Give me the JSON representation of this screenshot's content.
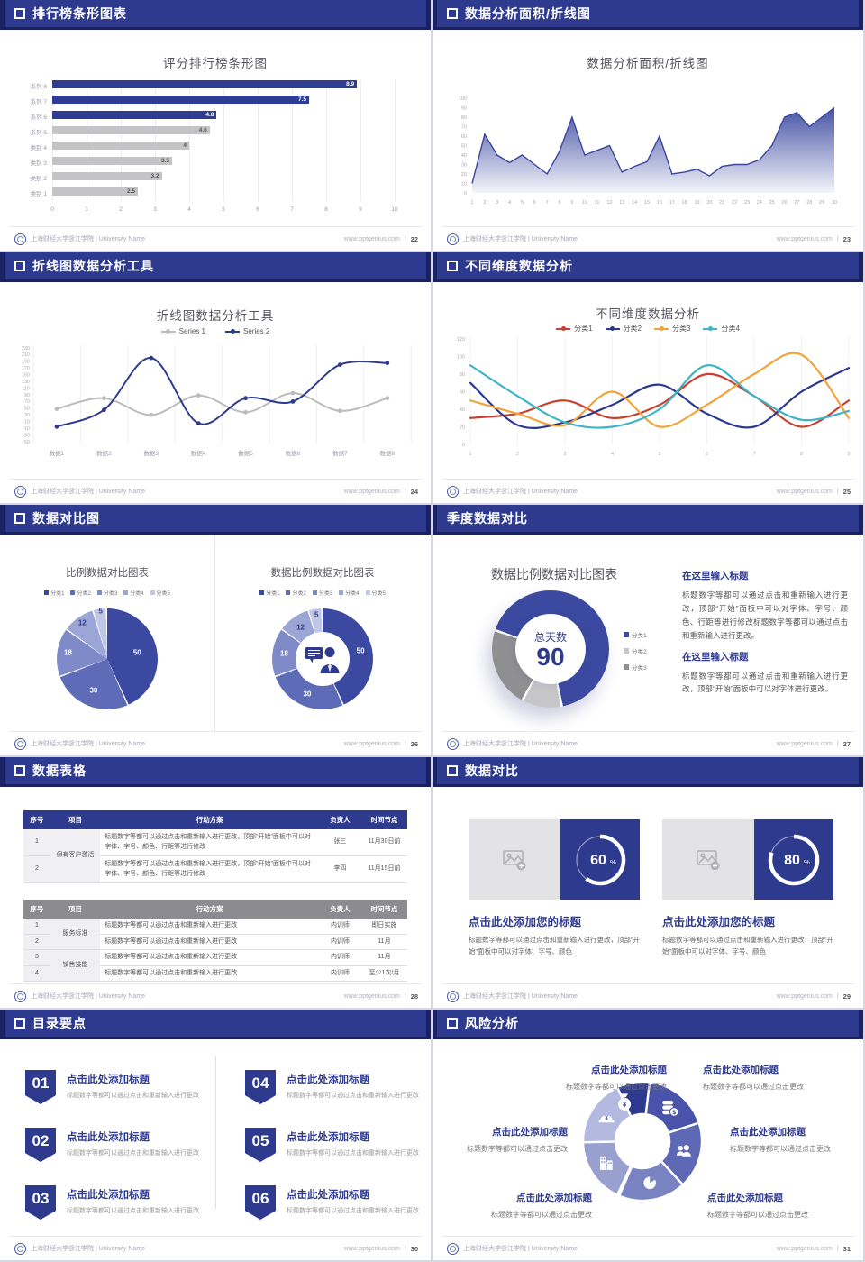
{
  "accent": "#2e3a8e",
  "footer": {
    "org": "上海财经大学浙江学院 | University Name",
    "site": "www.pptgenius.com",
    "sep": "|"
  },
  "slides": {
    "bar": {
      "header": "排行榜条形图表",
      "page": "22"
    },
    "area": {
      "header": "数据分析面积/折线图",
      "page": "23"
    },
    "line2": {
      "header": "折线图数据分析工具",
      "page": "24"
    },
    "line4": {
      "header": "不同维度数据分析",
      "page": "25"
    },
    "pies": {
      "header": "数据对比图",
      "page": "26"
    },
    "donut90": {
      "header": "季度数据对比",
      "page": "27",
      "blocks": [
        {
          "title": "在这里输入标题",
          "body": "标题数字等都可以通过点击和重新输入进行更改，顶部“开始”面板中可以对字体、字号、颜色、行距等进行修改标题数字等都可以通过点击和重新输入进行更改。"
        },
        {
          "title": "在这里输入标题",
          "body": "标题数字等都可以通过点击和重新输入进行更改，顶部“开始”面板中可以对字体进行更改。"
        }
      ]
    },
    "tables": {
      "header": "数据表格",
      "page": "28",
      "table1": {
        "style": "blue",
        "columns": [
          "序号",
          "项目",
          "行动方案",
          "负责人",
          "时间节点"
        ],
        "groups": [
          {
            "project": "保有客户激活",
            "rows": [
              [
                "1",
                "标题数字等都可以通过点击和重新输入进行更改，顶部“开始”面板中可以对字体、字号、颜色、行距等进行修改",
                "张三",
                "11月30日前"
              ],
              [
                "2",
                "标题数字等都可以通过点击和重新输入进行更改，顶部“开始”面板中可以对字体、字号、颜色、行距等进行修改",
                "李四",
                "11月15日前"
              ]
            ]
          }
        ]
      },
      "table2": {
        "style": "gray",
        "columns": [
          "序号",
          "项目",
          "行动方案",
          "负责人",
          "时间节点"
        ],
        "groups": [
          {
            "project": "服务标准",
            "rows": [
              [
                "1",
                "标题数字等都可以通过点击和重新输入进行更改",
                "内训师",
                "即日实施"
              ],
              [
                "2",
                "标题数字等都可以通过点击和重新输入进行更改",
                "内训师",
                "11月"
              ]
            ]
          },
          {
            "project": "销售技能",
            "rows": [
              [
                "3",
                "标题数字等都可以通过点击和重新输入进行更改",
                "内训师",
                "11月"
              ],
              [
                "4",
                "标题数字等都可以通过点击和重新输入进行更改",
                "内训师",
                "至少1次/月"
              ]
            ]
          }
        ]
      }
    },
    "progress": {
      "header": "数据对比",
      "page": "29",
      "cards": [
        {
          "percent": 60,
          "title": "点击此处添加您的标题",
          "body": "标题数字等都可以通过点击和重新输入进行更改，顶部“开始”面板中可以对字体、字号、颜色"
        },
        {
          "percent": 80,
          "title": "点击此处添加您的标题",
          "body": "标题数字等都可以通过点击和重新输入进行更改，顶部“开始”面板中可以对字体、字号、颜色"
        }
      ]
    },
    "toc": {
      "header": "目录要点",
      "page": "30",
      "items": [
        {
          "num": "01",
          "title": "点击此处添加标题",
          "sub": "标题数字等都可以通过点击和重新输入进行更改"
        },
        {
          "num": "02",
          "title": "点击此处添加标题",
          "sub": "标题数字等都可以通过点击和重新输入进行更改"
        },
        {
          "num": "03",
          "title": "点击此处添加标题",
          "sub": "标题数字等都可以通过点击和重新输入进行更改"
        },
        {
          "num": "04",
          "title": "点击此处添加标题",
          "sub": "标题数字等都可以通过点击和重新输入进行更改"
        },
        {
          "num": "05",
          "title": "点击此处添加标题",
          "sub": "标题数字等都可以通过点击和重新输入进行更改"
        },
        {
          "num": "06",
          "title": "点击此处添加标题",
          "sub": "标题数字等都可以通过点击和重新输入进行更改"
        }
      ]
    },
    "risk": {
      "header": "风险分析",
      "page": "31",
      "items": [
        {
          "title": "点击此处添加标题",
          "sub": "标题数字等都可以通过点击更改",
          "icon": "money-bag"
        },
        {
          "title": "点击此处添加标题",
          "sub": "标题数字等都可以通过点击更改",
          "icon": "coins"
        },
        {
          "title": "点击此处添加标题",
          "sub": "标题数字等都可以通过点击更改",
          "icon": "helmet"
        },
        {
          "title": "点击此处添加标题",
          "sub": "标题数字等都可以通过点击更改",
          "icon": "people"
        },
        {
          "title": "点击此处添加标题",
          "sub": "标题数字等都可以通过点击更改",
          "icon": "building"
        },
        {
          "title": "点击此处添加标题",
          "sub": "标题数字等都可以通过点击更改",
          "icon": "pie"
        }
      ]
    }
  },
  "chart_data": [
    {
      "type": "bar",
      "title": "评分排行榜条形图",
      "categories": [
        "系列 8",
        "系列 7",
        "系列 6",
        "系列 5",
        "类别 4",
        "类别 3",
        "类别 2",
        "类别 1"
      ],
      "values": [
        8.9,
        7.5,
        4.8,
        4.6,
        4,
        3.5,
        3.2,
        2.5
      ],
      "highlight_count": 3,
      "highlight_color": "#2e3c94",
      "muted_color": "#c4c4c6",
      "xlim": [
        0,
        10
      ],
      "xticks": [
        0,
        1,
        2,
        3,
        4,
        5,
        6,
        7,
        8,
        9,
        10
      ]
    },
    {
      "type": "area",
      "title": "数据分析面积/折线图",
      "x": [
        1,
        2,
        3,
        4,
        5,
        6,
        7,
        8,
        9,
        10,
        11,
        12,
        13,
        14,
        15,
        16,
        17,
        18,
        19,
        20,
        21,
        22,
        23,
        24,
        25,
        26,
        27,
        28,
        29,
        30
      ],
      "values": [
        10,
        62,
        40,
        32,
        40,
        30,
        20,
        44,
        80,
        40,
        45,
        50,
        22,
        28,
        33,
        60,
        20,
        22,
        25,
        18,
        28,
        30,
        30,
        35,
        50,
        80,
        85,
        70,
        80,
        90
      ],
      "ylim": [
        0,
        100
      ],
      "ytick_step": 10,
      "line_color": "#39469c",
      "fill_color": "#3d4ba2"
    },
    {
      "type": "line",
      "title": "折线图数据分析工具",
      "categories": [
        "数据1",
        "数据2",
        "数据3",
        "数据4",
        "数据5",
        "数据6",
        "数据7",
        "数据8"
      ],
      "ylim": [
        -50,
        230
      ],
      "ytick_step": 20,
      "series": [
        {
          "name": "Series 1",
          "color": "#bcbcbe",
          "values": [
            48,
            80,
            30,
            88,
            38,
            95,
            42,
            80
          ]
        },
        {
          "name": "Series 2",
          "color": "#2e3a8e",
          "values": [
            -5,
            45,
            200,
            5,
            80,
            70,
            180,
            185
          ]
        }
      ]
    },
    {
      "type": "line",
      "title": "不同维度数据分析",
      "x": [
        1,
        2,
        3,
        4,
        5,
        6,
        7,
        8,
        9
      ],
      "ylim": [
        0,
        120
      ],
      "ytick_step": 20,
      "series": [
        {
          "name": "分类1",
          "color": "#c8402f",
          "values": [
            30,
            35,
            50,
            30,
            45,
            80,
            55,
            20,
            50
          ]
        },
        {
          "name": "分类2",
          "color": "#2b3990",
          "values": [
            70,
            22,
            25,
            45,
            68,
            35,
            20,
            60,
            87
          ]
        },
        {
          "name": "分类3",
          "color": "#f2a33a",
          "values": [
            50,
            35,
            22,
            60,
            20,
            45,
            80,
            102,
            30
          ]
        },
        {
          "name": "分类4",
          "color": "#3cb4c7",
          "values": [
            90,
            55,
            25,
            20,
            40,
            90,
            55,
            28,
            38
          ]
        }
      ]
    },
    {
      "type": "pie",
      "title": "比例数据对比图表",
      "labels": [
        "分类1",
        "分类2",
        "分类3",
        "分类4",
        "分类5"
      ],
      "values": [
        50,
        30,
        18,
        12,
        5
      ],
      "colors": [
        "#3b4aa0",
        "#5e6cb8",
        "#7f8bc9",
        "#9ba5d6",
        "#bfc6e6"
      ]
    },
    {
      "type": "donut",
      "title": "数据比例数据对比图表",
      "labels": [
        "分类1",
        "分类2",
        "分类3",
        "分类4",
        "分类5"
      ],
      "values": [
        50,
        30,
        18,
        12,
        5
      ],
      "colors": [
        "#3b4aa0",
        "#5e6cb8",
        "#7f8bc9",
        "#9ba5d6",
        "#bfc6e6"
      ]
    },
    {
      "type": "donut",
      "title": "数据比例数据对比图表",
      "labels": [
        "分类1",
        "分类2",
        "分类3"
      ],
      "values": [
        60,
        10,
        20
      ],
      "colors": [
        "#3b4aa0",
        "#c6c6c8",
        "#8f8f92"
      ],
      "center_label": "总天数",
      "center_value": "90",
      "start_angle": -70
    }
  ]
}
